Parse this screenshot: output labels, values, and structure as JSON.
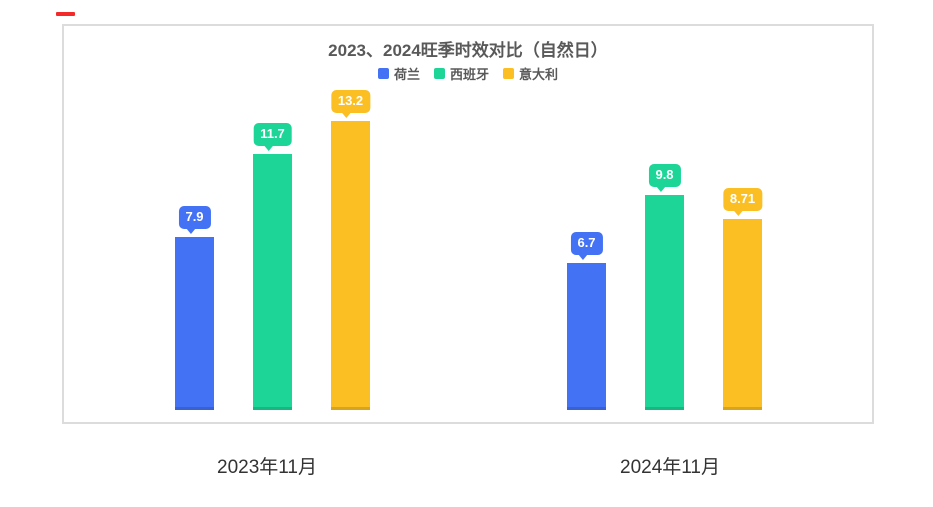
{
  "title": "2023、2024旺季时效对比（自然日）",
  "chart_data": {
    "type": "bar",
    "title": "2023、2024旺季时效对比（自然日）",
    "categories": [
      "2023年11月",
      "2024年11月"
    ],
    "series": [
      {
        "name": "荷兰",
        "color": "#4472f5",
        "values": [
          7.9,
          6.7
        ]
      },
      {
        "name": "西班牙",
        "color": "#1dd596",
        "values": [
          11.7,
          9.8
        ]
      },
      {
        "name": "意大利",
        "color": "#fbbf24",
        "values": [
          13.2,
          8.71
        ]
      }
    ],
    "data_labels": [
      [
        "7.9",
        "11.7",
        "13.2"
      ],
      [
        "6.7",
        "9.8",
        "8.71"
      ]
    ],
    "ylim": [
      0,
      17.6
    ],
    "grid": false,
    "axes_visible": false,
    "legend_position": "top-center"
  },
  "colors": {
    "box_border": "#dcdcdc",
    "title_text": "#595959",
    "category_text": "#333333",
    "bubble_text": "#ffffff",
    "red_mark": "#f42a2a"
  }
}
